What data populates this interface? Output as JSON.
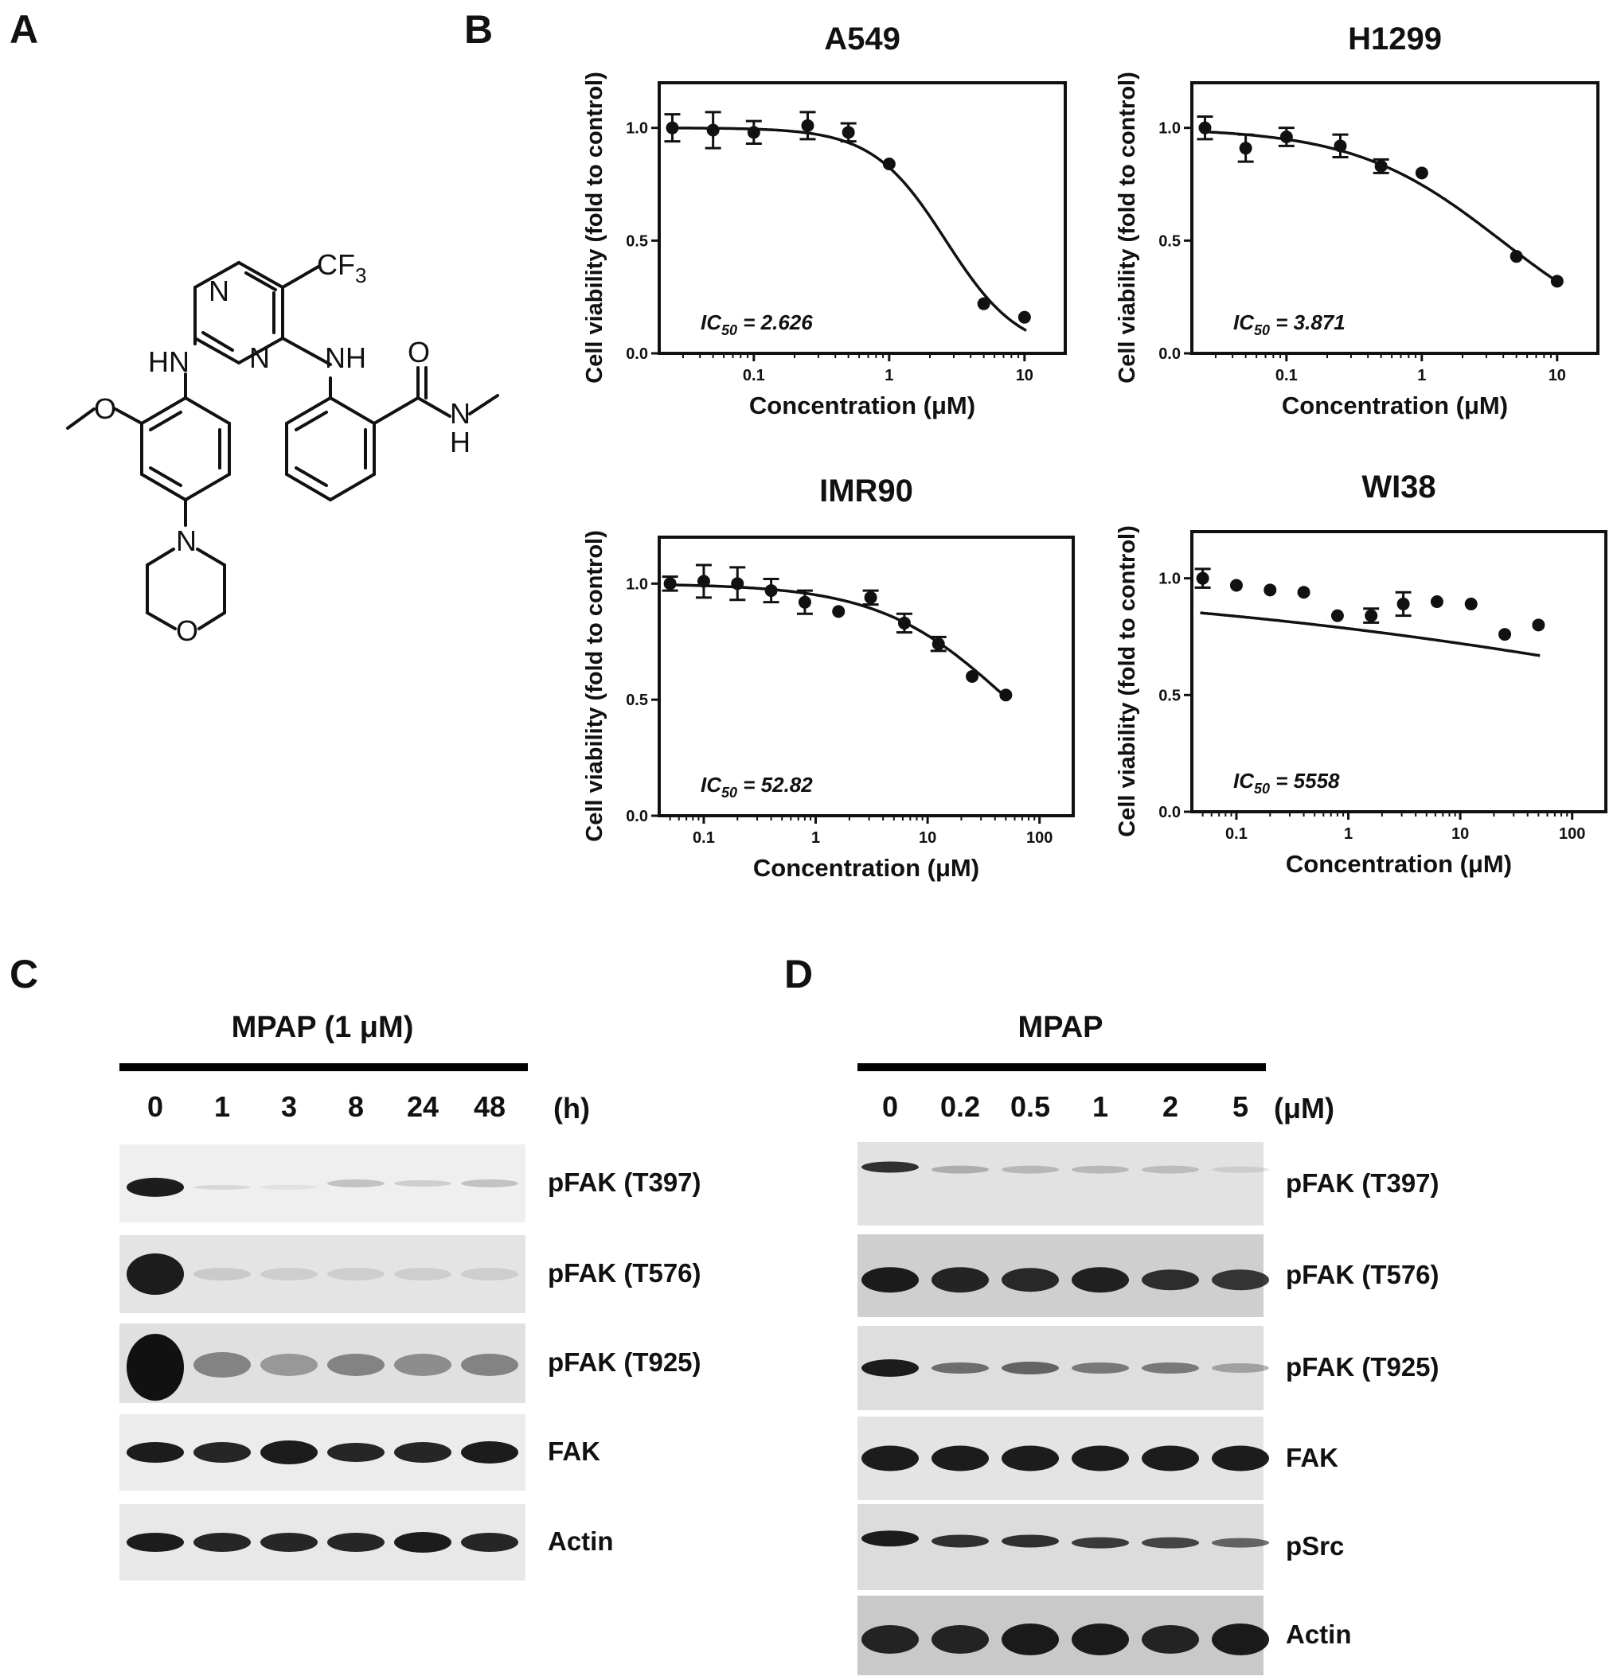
{
  "panel_letters": {
    "a": "A",
    "b": "B",
    "c": "C",
    "d": "D"
  },
  "structure_labels": {
    "cf3": "CF3",
    "n1": "N",
    "n2": "N",
    "hn_left": "HN",
    "nh_right": "NH",
    "o_carbonyl": "O",
    "n_amide": "N",
    "h_amide": "H",
    "o_methoxy": "O",
    "n_morph": "N",
    "o_morph": "O"
  },
  "chart_data": [
    {
      "type": "scatter",
      "title": "A549",
      "xlabel": "Concentration (μM)",
      "ylabel": "Cell viability (fold to control)",
      "x_scale": "log",
      "xlim": [
        0.02,
        20
      ],
      "ylim": [
        0,
        1.2
      ],
      "x_ticks": [
        "0.1",
        "1",
        "10"
      ],
      "y_ticks": [
        "0.0",
        "0.5",
        "1.0"
      ],
      "annotation": "IC50 = 2.626",
      "points": {
        "x": [
          0.025,
          0.05,
          0.1,
          0.25,
          0.5,
          1,
          5,
          10
        ],
        "y": [
          1.0,
          0.99,
          0.98,
          1.01,
          0.98,
          0.84,
          0.22,
          0.16
        ],
        "err": [
          0.06,
          0.08,
          0.05,
          0.06,
          0.04,
          0.0,
          0.0,
          0.0
        ]
      },
      "fit": {
        "ic50": 2.626,
        "hill": 1.6,
        "top": 1.0,
        "bottom": 0.0
      }
    },
    {
      "type": "scatter",
      "title": "H1299",
      "xlabel": "Concentration (μM)",
      "ylabel": "Cell viability (fold to control)",
      "x_scale": "log",
      "xlim": [
        0.02,
        20
      ],
      "ylim": [
        0,
        1.2
      ],
      "x_ticks": [
        "0.1",
        "1",
        "10"
      ],
      "y_ticks": [
        "0.0",
        "0.5",
        "1.0"
      ],
      "annotation": "IC50 = 3.871",
      "points": {
        "x": [
          0.025,
          0.05,
          0.1,
          0.25,
          0.5,
          1,
          5,
          10
        ],
        "y": [
          1.0,
          0.91,
          0.96,
          0.92,
          0.83,
          0.8,
          0.43,
          0.32
        ],
        "err": [
          0.05,
          0.06,
          0.04,
          0.05,
          0.03,
          0.0,
          0.0,
          0.0
        ]
      },
      "fit": {
        "ic50": 3.871,
        "hill": 0.8,
        "top": 1.0,
        "bottom": 0.0
      }
    },
    {
      "type": "scatter",
      "title": "IMR90",
      "xlabel": "Concentration (μM)",
      "ylabel": "Cell viability (fold to control)",
      "x_scale": "log",
      "xlim": [
        0.04,
        200
      ],
      "ylim": [
        0,
        1.2
      ],
      "x_ticks": [
        "0.1",
        "1",
        "10",
        "100"
      ],
      "y_ticks": [
        "0.0",
        "0.5",
        "1.0"
      ],
      "annotation": "IC50 = 52.82",
      "points": {
        "x": [
          0.05,
          0.1,
          0.2,
          0.4,
          0.8,
          1.6,
          3.1,
          6.2,
          12.5,
          25,
          50
        ],
        "y": [
          1.0,
          1.01,
          1.0,
          0.97,
          0.92,
          0.88,
          0.94,
          0.83,
          0.74,
          0.6,
          0.52
        ],
        "err": [
          0.03,
          0.07,
          0.07,
          0.05,
          0.05,
          0.0,
          0.03,
          0.04,
          0.03,
          0.0,
          0.0
        ]
      },
      "fit": {
        "ic50": 52.82,
        "hill": 0.75,
        "top": 1.0,
        "bottom": 0.0
      }
    },
    {
      "type": "scatter",
      "title": "WI38",
      "xlabel": "Concentration (μM)",
      "ylabel": "Cell viability (fold to control)",
      "x_scale": "log",
      "xlim": [
        0.04,
        200
      ],
      "ylim": [
        0,
        1.2
      ],
      "x_ticks": [
        "0.1",
        "1",
        "10",
        "100"
      ],
      "y_ticks": [
        "0.0",
        "0.5",
        "1.0"
      ],
      "annotation": "IC50 = 5558",
      "points": {
        "x": [
          0.05,
          0.1,
          0.2,
          0.4,
          0.8,
          1.6,
          3.1,
          6.2,
          12.5,
          25,
          50
        ],
        "y": [
          1.0,
          0.97,
          0.95,
          0.94,
          0.84,
          0.84,
          0.89,
          0.9,
          0.89,
          0.76,
          0.8
        ],
        "err": [
          0.04,
          0.0,
          0.0,
          0.0,
          0.0,
          0.03,
          0.05,
          0.0,
          0.0,
          0.0,
          0.0
        ]
      },
      "fit": {
        "ic50": 5558,
        "hill": 0.15,
        "top": 1.0,
        "bottom": 0.0
      }
    }
  ],
  "blot_c": {
    "header": "MPAP (1 μM)",
    "unit": "(h)",
    "lanes": [
      "0",
      "1",
      "3",
      "8",
      "24",
      "48"
    ],
    "rows": [
      "pFAK (T397)",
      "pFAK (T576)",
      "pFAK (T925)",
      "FAK",
      "Actin"
    ]
  },
  "blot_d": {
    "header": "MPAP",
    "unit": "(μM)",
    "lanes": [
      "0",
      "0.2",
      "0.5",
      "1",
      "2",
      "5"
    ],
    "rows": [
      "pFAK (T397)",
      "pFAK (T576)",
      "pFAK (T925)",
      "FAK",
      "pSrc",
      "Actin"
    ]
  }
}
